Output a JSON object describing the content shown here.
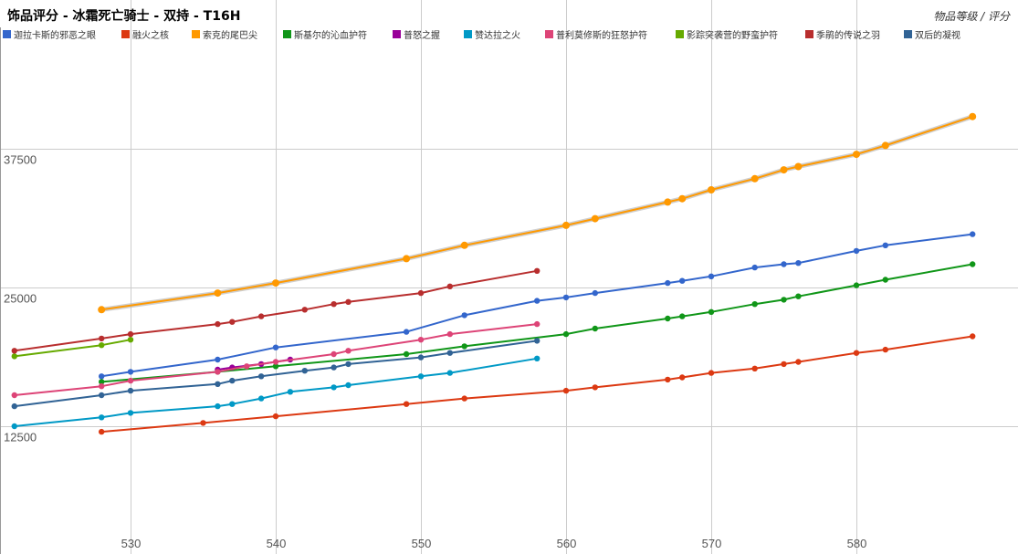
{
  "chart_data": {
    "type": "line",
    "title": "饰品评分 - 冰霜死亡骑士 - 双持 - T16H",
    "subtitle": "物品等级 / 评分",
    "xlabel": "",
    "ylabel": "",
    "xlim": [
      522,
      588
    ],
    "ylim": [
      0,
      50000
    ],
    "xticks": [
      530,
      540,
      550,
      560,
      570,
      580
    ],
    "yticks": [
      12500,
      25000,
      37500
    ],
    "grid": true,
    "legend_position": "top",
    "series": [
      {
        "name": "迦拉卡斯的邪恶之眼",
        "color": "#3366cc",
        "points": [
          [
            528,
            17000
          ],
          [
            530,
            17400
          ],
          [
            536,
            18500
          ],
          [
            540,
            19600
          ],
          [
            549,
            21000
          ],
          [
            553,
            22500
          ],
          [
            558,
            23800
          ],
          [
            560,
            24100
          ],
          [
            562,
            24500
          ],
          [
            567,
            25400
          ],
          [
            568,
            25600
          ],
          [
            570,
            26000
          ],
          [
            573,
            26800
          ],
          [
            575,
            27100
          ],
          [
            576,
            27200
          ],
          [
            580,
            28300
          ],
          [
            582,
            28800
          ],
          [
            588,
            29800
          ]
        ]
      },
      {
        "name": "融火之核",
        "color": "#dc3912",
        "points": [
          [
            528,
            12000
          ],
          [
            535,
            12800
          ],
          [
            540,
            13400
          ],
          [
            549,
            14500
          ],
          [
            553,
            15000
          ],
          [
            560,
            15700
          ],
          [
            562,
            16000
          ],
          [
            567,
            16700
          ],
          [
            568,
            16900
          ],
          [
            570,
            17300
          ],
          [
            573,
            17700
          ],
          [
            575,
            18100
          ],
          [
            576,
            18300
          ],
          [
            580,
            19100
          ],
          [
            582,
            19400
          ],
          [
            588,
            20600
          ]
        ]
      },
      {
        "name": "索克的尾巴尖",
        "color": "#ff9900",
        "points": [
          [
            528,
            23000
          ],
          [
            536,
            24500
          ],
          [
            540,
            25400
          ],
          [
            549,
            27600
          ],
          [
            553,
            28800
          ],
          [
            560,
            30600
          ],
          [
            562,
            31200
          ],
          [
            567,
            32700
          ],
          [
            568,
            33000
          ],
          [
            570,
            33800
          ],
          [
            573,
            34800
          ],
          [
            575,
            35600
          ],
          [
            576,
            35900
          ],
          [
            580,
            37000
          ],
          [
            582,
            37800
          ],
          [
            588,
            40400
          ]
        ]
      },
      {
        "name": "斯基尔的沁血护符",
        "color": "#109618",
        "points": [
          [
            528,
            16500
          ],
          [
            536,
            17400
          ],
          [
            540,
            17900
          ],
          [
            549,
            19000
          ],
          [
            553,
            19700
          ],
          [
            560,
            20800
          ],
          [
            562,
            21300
          ],
          [
            567,
            22200
          ],
          [
            568,
            22400
          ],
          [
            570,
            22800
          ],
          [
            573,
            23500
          ],
          [
            575,
            23900
          ],
          [
            576,
            24200
          ],
          [
            580,
            25200
          ],
          [
            582,
            25700
          ],
          [
            588,
            27100
          ]
        ]
      },
      {
        "name": "普怒之握",
        "color": "#990099",
        "points": [
          [
            536,
            17600
          ],
          [
            537,
            17800
          ],
          [
            539,
            18100
          ],
          [
            541,
            18500
          ]
        ]
      },
      {
        "name": "赞达拉之火",
        "color": "#0099c6",
        "points": [
          [
            522,
            12500
          ],
          [
            528,
            13300
          ],
          [
            530,
            13700
          ],
          [
            536,
            14300
          ],
          [
            537,
            14500
          ],
          [
            539,
            15000
          ],
          [
            541,
            15600
          ],
          [
            544,
            16000
          ],
          [
            545,
            16200
          ],
          [
            550,
            17000
          ],
          [
            552,
            17300
          ],
          [
            558,
            18600
          ]
        ]
      },
      {
        "name": "普利莫修斯的狂怒护符",
        "color": "#dd4477",
        "points": [
          [
            522,
            15300
          ],
          [
            528,
            16100
          ],
          [
            530,
            16600
          ],
          [
            536,
            17400
          ],
          [
            538,
            17900
          ],
          [
            540,
            18300
          ],
          [
            544,
            19000
          ],
          [
            545,
            19300
          ],
          [
            550,
            20300
          ],
          [
            552,
            20800
          ],
          [
            558,
            21700
          ]
        ]
      },
      {
        "name": "影踪突袭营的野蛮护符",
        "color": "#66aa00",
        "points": [
          [
            522,
            18800
          ],
          [
            528,
            19800
          ],
          [
            530,
            20300
          ]
        ]
      },
      {
        "name": "季鹃的传说之羽",
        "color": "#b82e2e",
        "points": [
          [
            522,
            19300
          ],
          [
            528,
            20400
          ],
          [
            530,
            20800
          ],
          [
            536,
            21700
          ],
          [
            537,
            21900
          ],
          [
            539,
            22400
          ],
          [
            542,
            23000
          ],
          [
            544,
            23500
          ],
          [
            545,
            23700
          ],
          [
            550,
            24500
          ],
          [
            552,
            25100
          ],
          [
            558,
            26500
          ]
        ]
      },
      {
        "name": "双后的凝视",
        "color": "#316395",
        "points": [
          [
            522,
            14300
          ],
          [
            528,
            15300
          ],
          [
            530,
            15700
          ],
          [
            536,
            16300
          ],
          [
            537,
            16600
          ],
          [
            539,
            17000
          ],
          [
            542,
            17500
          ],
          [
            544,
            17800
          ],
          [
            545,
            18100
          ],
          [
            550,
            18700
          ],
          [
            552,
            19100
          ],
          [
            558,
            20200
          ]
        ]
      }
    ]
  }
}
